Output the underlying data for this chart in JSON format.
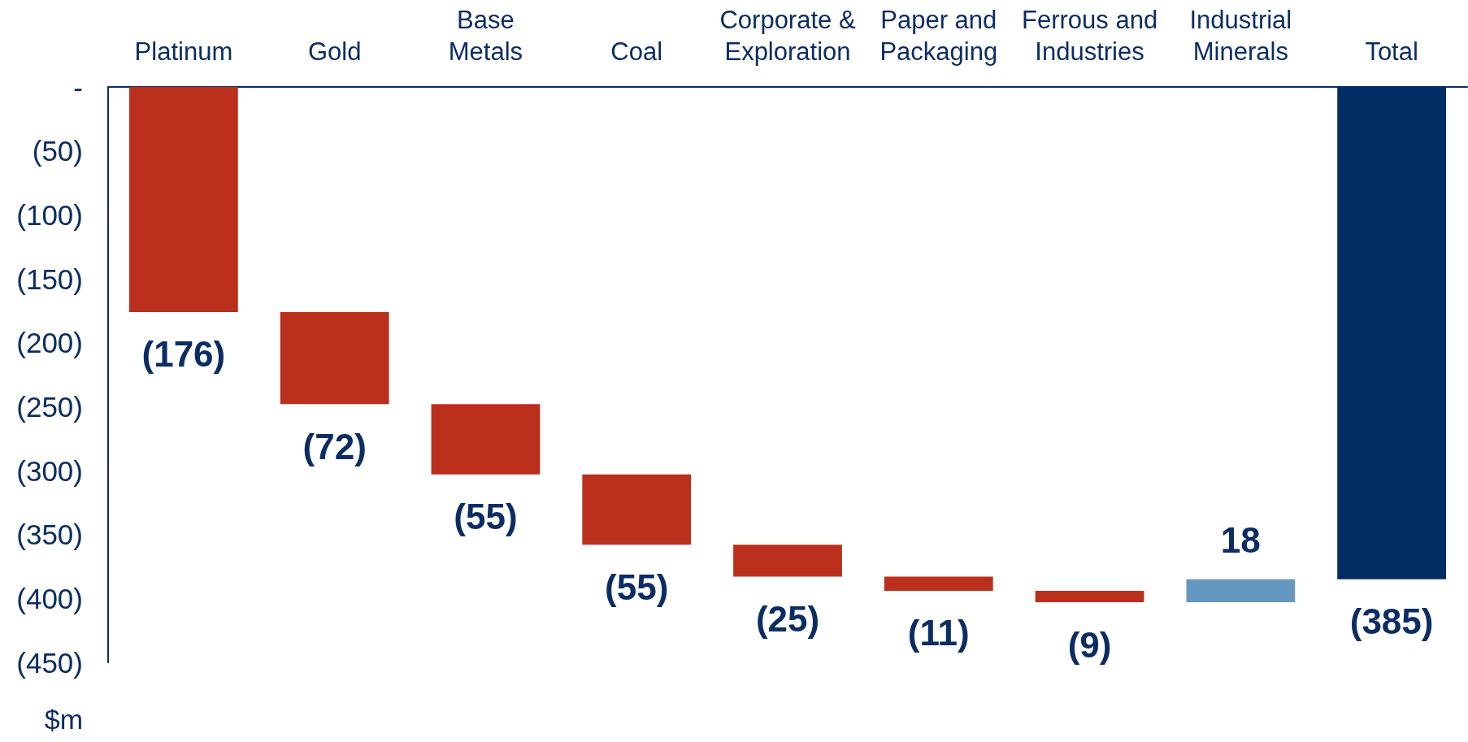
{
  "chart_data": {
    "type": "bar",
    "categories": [
      "Platinum",
      "Gold",
      "Base\nMetals",
      "Coal",
      "Corporate &\nExploration",
      "Paper and\nPackaging",
      "Ferrous and\nIndustries",
      "Industrial\nMinerals",
      "Total"
    ],
    "values": [
      -176,
      -72,
      -55,
      -55,
      -25,
      -11,
      -9,
      18,
      -385
    ],
    "base": [
      0,
      -176,
      -248,
      -303,
      -358,
      -383,
      -394,
      -403,
      0
    ],
    "colors": [
      "#ba301c",
      "#ba301c",
      "#ba301c",
      "#ba301c",
      "#ba301c",
      "#ba301c",
      "#ba301c",
      "#6498c1",
      "#022c64"
    ],
    "value_labels": [
      "(176)",
      "(72)",
      "(55)",
      "(55)",
      "(25)",
      "(11)",
      "(9)",
      "18",
      "(385)"
    ],
    "ylabel": "$m",
    "ylim": [
      -450,
      0
    ],
    "yticks": [
      {
        "value": 0,
        "label": "-"
      },
      {
        "value": -50,
        "label": "(50)"
      },
      {
        "value": -100,
        "label": "(100)"
      },
      {
        "value": -150,
        "label": "(150)"
      },
      {
        "value": -200,
        "label": "(200)"
      },
      {
        "value": -250,
        "label": "(250)"
      },
      {
        "value": -300,
        "label": "(300)"
      },
      {
        "value": -350,
        "label": "(350)"
      },
      {
        "value": -400,
        "label": "(400)"
      },
      {
        "value": -450,
        "label": "(450)"
      }
    ]
  }
}
